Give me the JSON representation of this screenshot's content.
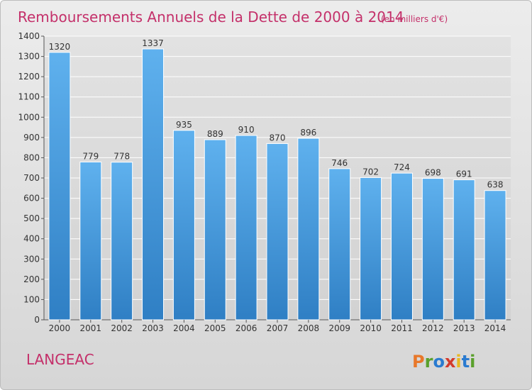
{
  "chart_data": {
    "type": "bar",
    "title": "Remboursements Annuels de la Dette de 2000 à 2014",
    "subtitle": "(en milliers d'€)",
    "categories": [
      "2000",
      "2001",
      "2002",
      "2003",
      "2004",
      "2005",
      "2006",
      "2007",
      "2008",
      "2009",
      "2010",
      "2011",
      "2012",
      "2013",
      "2014"
    ],
    "values": [
      1320,
      779,
      778,
      1337,
      935,
      889,
      910,
      870,
      896,
      746,
      702,
      724,
      698,
      691,
      638
    ],
    "ylim": [
      0,
      1400
    ],
    "yticks": [
      0,
      100,
      200,
      300,
      400,
      500,
      600,
      700,
      800,
      900,
      1000,
      1100,
      1200,
      1300,
      1400
    ],
    "grid": true,
    "bar_color": "#4a9fe0"
  },
  "footer": {
    "place": "LANGEAC",
    "logo_letters": [
      "P",
      "r",
      "o",
      "x",
      "i",
      "t",
      "i"
    ],
    "logo_colors": [
      "#e8782a",
      "#5aa02c",
      "#2a7bd0",
      "#d33a2c",
      "#e8b820",
      "#2a7bd0",
      "#5aa02c"
    ]
  }
}
